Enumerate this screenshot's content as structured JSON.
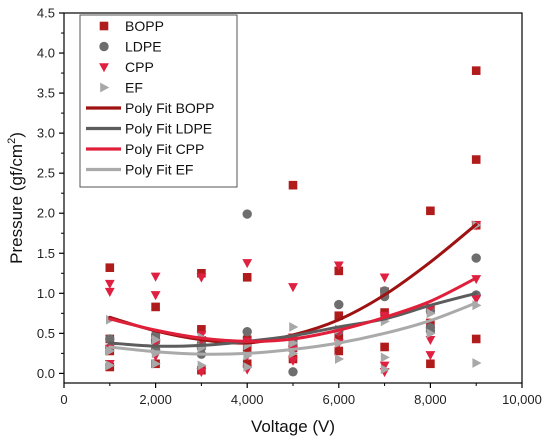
{
  "chart_data": {
    "type": "scatter",
    "title": "",
    "xlabel": "Voltage (V)",
    "ylabel_main": "Pressure (gf/cm",
    "ylabel_sup": "2",
    "ylabel_tail": ")",
    "xlim": [
      0,
      10000
    ],
    "ylim": [
      -0.12,
      4.5
    ],
    "x_ticks": [
      0,
      2000,
      4000,
      6000,
      8000,
      10000
    ],
    "x_tick_labels": [
      "0",
      "2,000",
      "4,000",
      "6,000",
      "8,000",
      "10,000"
    ],
    "y_ticks": [
      0.0,
      0.5,
      1.0,
      1.5,
      2.0,
      2.5,
      3.0,
      3.5,
      4.0,
      4.5
    ],
    "y_tick_labels": [
      "0.0",
      "0.5",
      "1.0",
      "1.5",
      "2.0",
      "2.5",
      "3.0",
      "3.5",
      "4.0",
      "4.5"
    ],
    "grid": false,
    "legend_position": "top-left",
    "series": [
      {
        "name": "BOPP",
        "marker": "square",
        "color": "#b01c1c",
        "points": [
          [
            1000,
            1.32
          ],
          [
            1000,
            0.43
          ],
          [
            1000,
            0.28
          ],
          [
            1000,
            0.08
          ],
          [
            2000,
            0.83
          ],
          [
            2000,
            0.42
          ],
          [
            2000,
            0.12
          ],
          [
            3000,
            1.25
          ],
          [
            3000,
            0.55
          ],
          [
            3000,
            0.35
          ],
          [
            3000,
            0.04
          ],
          [
            4000,
            1.2
          ],
          [
            4000,
            0.42
          ],
          [
            4000,
            0.3
          ],
          [
            4000,
            0.12
          ],
          [
            5000,
            2.35
          ],
          [
            5000,
            0.42
          ],
          [
            5000,
            0.32
          ],
          [
            5000,
            0.18
          ],
          [
            6000,
            1.28
          ],
          [
            6000,
            0.72
          ],
          [
            6000,
            0.45
          ],
          [
            6000,
            0.28
          ],
          [
            7000,
            1.02
          ],
          [
            7000,
            0.76
          ],
          [
            7000,
            0.33
          ],
          [
            8000,
            2.03
          ],
          [
            8000,
            0.8
          ],
          [
            8000,
            0.63
          ],
          [
            8000,
            0.12
          ],
          [
            9000,
            3.78
          ],
          [
            9000,
            2.67
          ],
          [
            9000,
            1.85
          ],
          [
            9000,
            0.43
          ]
        ]
      },
      {
        "name": "LDPE",
        "marker": "circle",
        "color": "#6e6e6e",
        "points": [
          [
            1000,
            0.43
          ],
          [
            1000,
            0.32
          ],
          [
            2000,
            0.48
          ],
          [
            2000,
            0.4
          ],
          [
            2000,
            0.3
          ],
          [
            3000,
            0.37
          ],
          [
            3000,
            0.32
          ],
          [
            3000,
            0.24
          ],
          [
            4000,
            1.99
          ],
          [
            4000,
            0.52
          ],
          [
            4000,
            0.38
          ],
          [
            5000,
            0.42
          ],
          [
            5000,
            0.34
          ],
          [
            5000,
            0.02
          ],
          [
            6000,
            0.86
          ],
          [
            6000,
            0.53
          ],
          [
            7000,
            1.03
          ],
          [
            7000,
            0.96
          ],
          [
            8000,
            0.78
          ],
          [
            8000,
            0.57
          ],
          [
            8000,
            0.53
          ],
          [
            9000,
            1.44
          ],
          [
            9000,
            0.98
          ]
        ]
      },
      {
        "name": "CPP",
        "marker": "triangle-down",
        "color": "#e02040",
        "points": [
          [
            1000,
            1.12
          ],
          [
            1000,
            1.02
          ],
          [
            1000,
            0.31
          ],
          [
            1000,
            0.12
          ],
          [
            2000,
            1.21
          ],
          [
            2000,
            0.98
          ],
          [
            2000,
            0.38
          ],
          [
            2000,
            0.22
          ],
          [
            3000,
            1.2
          ],
          [
            3000,
            0.48
          ],
          [
            3000,
            0.42
          ],
          [
            3000,
            0.02
          ],
          [
            4000,
            1.38
          ],
          [
            4000,
            0.4
          ],
          [
            4000,
            0.22
          ],
          [
            4000,
            0.05
          ],
          [
            5000,
            1.08
          ],
          [
            5000,
            0.45
          ],
          [
            5000,
            0.3
          ],
          [
            5000,
            0.16
          ],
          [
            6000,
            1.35
          ],
          [
            6000,
            0.52
          ],
          [
            6000,
            0.38
          ],
          [
            7000,
            1.2
          ],
          [
            7000,
            0.72
          ],
          [
            7000,
            0.1
          ],
          [
            7000,
            0.02
          ],
          [
            8000,
            0.82
          ],
          [
            8000,
            0.42
          ],
          [
            8000,
            0.23
          ],
          [
            9000,
            1.85
          ],
          [
            9000,
            1.18
          ],
          [
            9000,
            0.93
          ]
        ]
      },
      {
        "name": "EF",
        "marker": "triangle-right",
        "color": "#a8a8a8",
        "points": [
          [
            1000,
            0.67
          ],
          [
            1000,
            0.28
          ],
          [
            1000,
            0.1
          ],
          [
            2000,
            0.42
          ],
          [
            2000,
            0.25
          ],
          [
            2000,
            0.12
          ],
          [
            3000,
            0.45
          ],
          [
            3000,
            0.32
          ],
          [
            3000,
            0.1
          ],
          [
            4000,
            0.35
          ],
          [
            4000,
            0.22
          ],
          [
            4000,
            0.08
          ],
          [
            5000,
            0.58
          ],
          [
            5000,
            0.38
          ],
          [
            5000,
            0.25
          ],
          [
            6000,
            0.55
          ],
          [
            6000,
            0.38
          ],
          [
            6000,
            0.18
          ],
          [
            7000,
            0.65
          ],
          [
            7000,
            0.2
          ],
          [
            7000,
            0.05
          ],
          [
            8000,
            0.75
          ],
          [
            8000,
            0.5
          ],
          [
            9000,
            1.85
          ],
          [
            9000,
            0.85
          ],
          [
            9000,
            0.13
          ]
        ]
      },
      {
        "name": "Poly Fit BOPP",
        "type": "line",
        "color": "#9e1212",
        "width": 3,
        "points": [
          [
            1000,
            0.7
          ],
          [
            2000,
            0.53
          ],
          [
            3000,
            0.42
          ],
          [
            4000,
            0.38
          ],
          [
            5000,
            0.48
          ],
          [
            6000,
            0.67
          ],
          [
            7000,
            0.98
          ],
          [
            8000,
            1.39
          ],
          [
            9000,
            1.86
          ]
        ]
      },
      {
        "name": "Poly Fit LDPE",
        "type": "line",
        "color": "#5c5c5c",
        "width": 3,
        "points": [
          [
            1000,
            0.38
          ],
          [
            2000,
            0.34
          ],
          [
            3000,
            0.35
          ],
          [
            4000,
            0.4
          ],
          [
            5000,
            0.47
          ],
          [
            6000,
            0.58
          ],
          [
            7000,
            0.68
          ],
          [
            8000,
            0.85
          ],
          [
            9000,
            1.0
          ]
        ]
      },
      {
        "name": "Poly Fit CPP",
        "type": "line",
        "color": "#e0203a",
        "width": 3,
        "points": [
          [
            1000,
            0.68
          ],
          [
            2000,
            0.54
          ],
          [
            3000,
            0.44
          ],
          [
            4000,
            0.4
          ],
          [
            5000,
            0.43
          ],
          [
            6000,
            0.54
          ],
          [
            7000,
            0.7
          ],
          [
            8000,
            0.9
          ],
          [
            9000,
            1.19
          ]
        ]
      },
      {
        "name": "Poly Fit EF",
        "type": "line",
        "color": "#aaaaaa",
        "width": 3,
        "points": [
          [
            1000,
            0.33
          ],
          [
            2000,
            0.27
          ],
          [
            3000,
            0.24
          ],
          [
            4000,
            0.25
          ],
          [
            5000,
            0.3
          ],
          [
            6000,
            0.38
          ],
          [
            7000,
            0.5
          ],
          [
            8000,
            0.66
          ],
          [
            9000,
            0.88
          ]
        ]
      }
    ]
  }
}
